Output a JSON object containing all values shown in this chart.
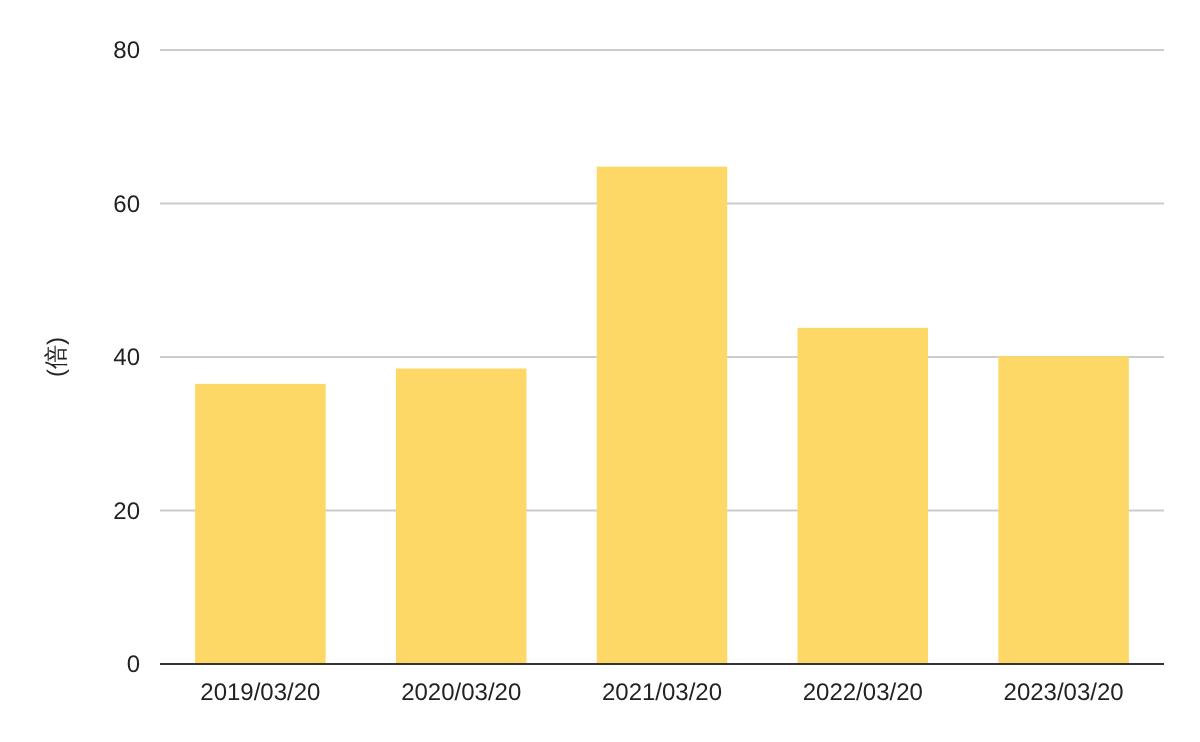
{
  "chart_data": {
    "type": "bar",
    "ylabel": "(倍)",
    "categories": [
      "2019/03/20",
      "2020/03/20",
      "2021/03/20",
      "2022/03/20",
      "2023/03/20"
    ],
    "values": [
      36.5,
      38.5,
      64.8,
      43.8,
      40.1
    ],
    "color": "#fdd866",
    "ylim": [
      0,
      80
    ],
    "yticks": [
      0,
      20,
      40,
      60,
      80
    ],
    "grid": "y"
  }
}
